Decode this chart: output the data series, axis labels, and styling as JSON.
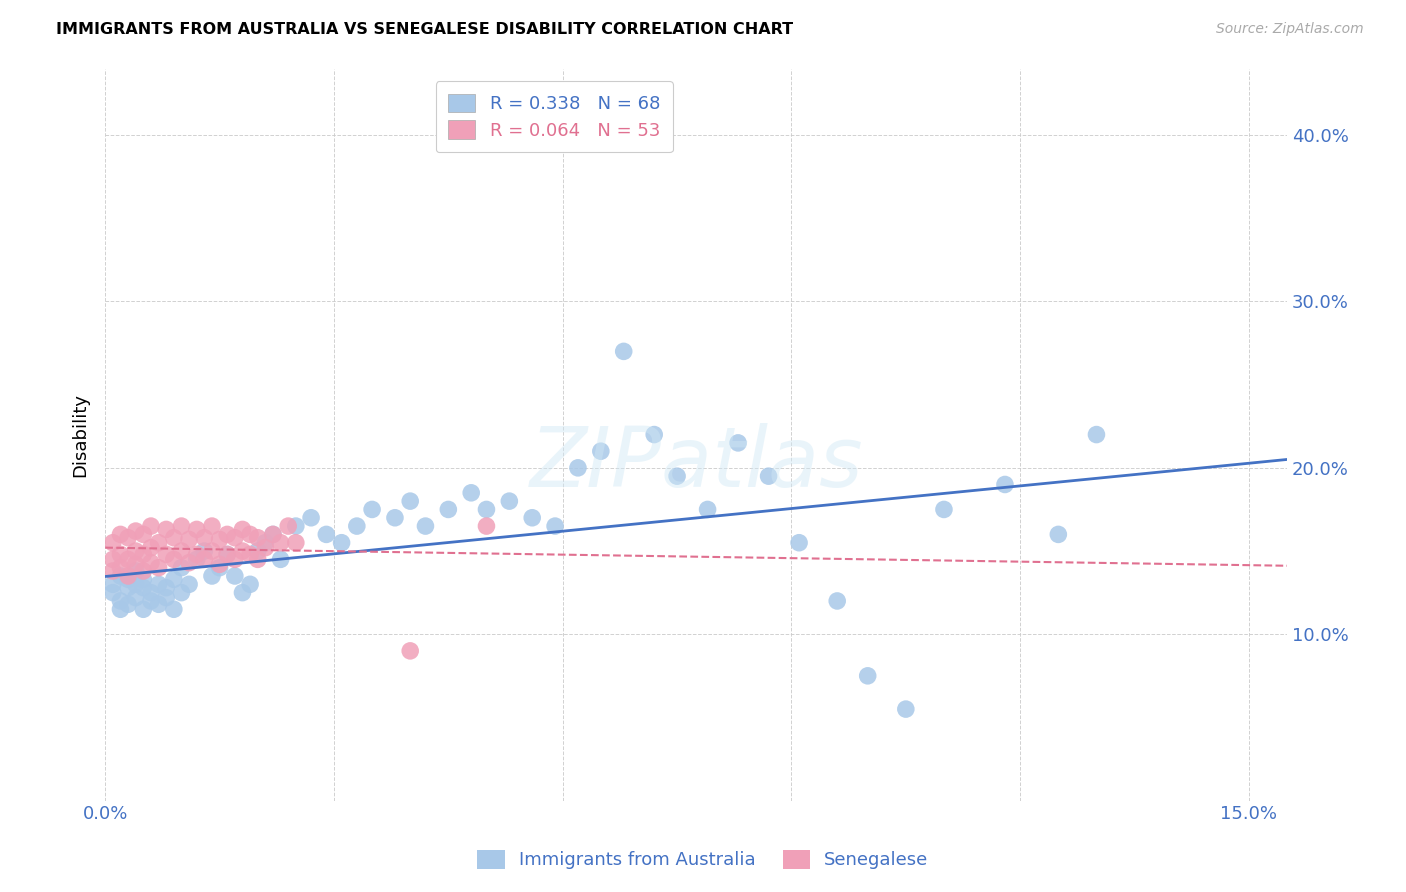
{
  "title": "IMMIGRANTS FROM AUSTRALIA VS SENEGALESE DISABILITY CORRELATION CHART",
  "source": "Source: ZipAtlas.com",
  "ylabel": "Disability",
  "R_australia": 0.338,
  "N_australia": 68,
  "R_senegalese": 0.064,
  "N_senegalese": 53,
  "color_australia": "#a8c8e8",
  "color_senegalese": "#f0a0b8",
  "line_color_australia": "#4472c4",
  "line_color_senegalese": "#e07090",
  "xlim": [
    0.0,
    0.155
  ],
  "ylim": [
    0.0,
    0.44
  ],
  "xticks": [
    0.0,
    0.03,
    0.06,
    0.09,
    0.12,
    0.15
  ],
  "xtick_labels": [
    "0.0%",
    "",
    "",
    "",
    "",
    "15.0%"
  ],
  "yticks": [
    0.1,
    0.2,
    0.3,
    0.4
  ],
  "ytick_labels": [
    "10.0%",
    "20.0%",
    "30.0%",
    "40.0%"
  ],
  "aus_x": [
    0.001,
    0.001,
    0.002,
    0.002,
    0.002,
    0.003,
    0.003,
    0.003,
    0.004,
    0.004,
    0.004,
    0.005,
    0.005,
    0.005,
    0.006,
    0.006,
    0.007,
    0.007,
    0.008,
    0.008,
    0.009,
    0.009,
    0.01,
    0.01,
    0.011,
    0.012,
    0.013,
    0.014,
    0.015,
    0.016,
    0.017,
    0.018,
    0.019,
    0.02,
    0.021,
    0.022,
    0.023,
    0.025,
    0.027,
    0.029,
    0.031,
    0.033,
    0.035,
    0.038,
    0.04,
    0.042,
    0.045,
    0.048,
    0.05,
    0.053,
    0.056,
    0.059,
    0.062,
    0.065,
    0.068,
    0.072,
    0.075,
    0.079,
    0.083,
    0.087,
    0.091,
    0.096,
    0.1,
    0.105,
    0.11,
    0.118,
    0.125,
    0.13
  ],
  "aus_y": [
    0.13,
    0.125,
    0.135,
    0.12,
    0.115,
    0.128,
    0.133,
    0.118,
    0.122,
    0.13,
    0.138,
    0.115,
    0.128,
    0.133,
    0.12,
    0.125,
    0.13,
    0.118,
    0.122,
    0.128,
    0.115,
    0.133,
    0.14,
    0.125,
    0.13,
    0.145,
    0.15,
    0.135,
    0.14,
    0.148,
    0.135,
    0.125,
    0.13,
    0.15,
    0.155,
    0.16,
    0.145,
    0.165,
    0.17,
    0.16,
    0.155,
    0.165,
    0.175,
    0.17,
    0.18,
    0.165,
    0.175,
    0.185,
    0.175,
    0.18,
    0.17,
    0.165,
    0.2,
    0.21,
    0.27,
    0.22,
    0.195,
    0.175,
    0.215,
    0.195,
    0.155,
    0.12,
    0.075,
    0.055,
    0.175,
    0.19,
    0.16,
    0.22
  ],
  "sen_x": [
    0.001,
    0.001,
    0.001,
    0.002,
    0.002,
    0.002,
    0.003,
    0.003,
    0.003,
    0.004,
    0.004,
    0.004,
    0.005,
    0.005,
    0.005,
    0.006,
    0.006,
    0.006,
    0.007,
    0.007,
    0.008,
    0.008,
    0.009,
    0.009,
    0.01,
    0.01,
    0.011,
    0.011,
    0.012,
    0.012,
    0.013,
    0.013,
    0.014,
    0.014,
    0.015,
    0.015,
    0.016,
    0.016,
    0.017,
    0.017,
    0.018,
    0.018,
    0.019,
    0.019,
    0.02,
    0.02,
    0.021,
    0.022,
    0.023,
    0.024,
    0.025,
    0.04,
    0.05
  ],
  "sen_y": [
    0.145,
    0.138,
    0.155,
    0.14,
    0.148,
    0.16,
    0.135,
    0.145,
    0.158,
    0.142,
    0.15,
    0.162,
    0.138,
    0.148,
    0.16,
    0.143,
    0.152,
    0.165,
    0.14,
    0.155,
    0.148,
    0.163,
    0.145,
    0.158,
    0.15,
    0.165,
    0.143,
    0.157,
    0.148,
    0.163,
    0.145,
    0.158,
    0.15,
    0.165,
    0.142,
    0.157,
    0.148,
    0.16,
    0.145,
    0.158,
    0.15,
    0.163,
    0.148,
    0.16,
    0.145,
    0.158,
    0.152,
    0.16,
    0.155,
    0.165,
    0.155,
    0.09,
    0.165
  ]
}
